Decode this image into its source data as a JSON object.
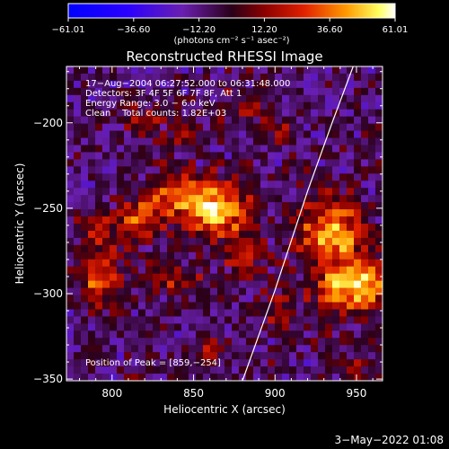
{
  "chart_data": {
    "type": "heatmap",
    "title": "Reconstructed RHESSI Image",
    "xlabel": "Heliocentric X (arcsec)",
    "ylabel": "Heliocentric Y (arcsec)",
    "xlim": [
      772,
      966
    ],
    "ylim": [
      -351,
      -167
    ],
    "x_ticks": [
      800,
      850,
      900,
      950
    ],
    "x_tick_labels": [
      "800",
      "850",
      "900",
      "950"
    ],
    "y_ticks": [
      -200,
      -250,
      -300,
      -350
    ],
    "y_tick_labels": [
      "−200",
      "−250",
      "−300",
      "−350"
    ],
    "colorbar": {
      "min": -61.01,
      "max": 61.01,
      "ticks": [
        -61.01,
        -36.6,
        -12.2,
        12.2,
        36.6,
        61.01
      ],
      "tick_labels": [
        "−61.01",
        "−36.60",
        "−12.20",
        "12.20",
        "36.60",
        "61.01"
      ],
      "unit_label": "(photons cm⁻² s⁻¹ asec⁻²)"
    },
    "annotations": [
      "17−Aug−2004 06:27:52.000 to 06:31:48.000",
      "Detectors: 3F 4F 5F 6F 7F 8F, Att 1",
      "Energy Range: 3.0 − 6.0 keV",
      "Clean    Total counts: 1.82E+03"
    ],
    "peak_label": "Position of Peak = [859,−254]",
    "peak_position": [
      859,
      -254
    ],
    "limb_line": [
      [
        880,
        -351
      ],
      [
        900,
        -298
      ],
      [
        920,
        -240
      ],
      [
        935,
        -200
      ],
      [
        948,
        -167
      ]
    ],
    "sources": [
      {
        "x": 865,
        "y": -250,
        "sx": 13,
        "sy": 11,
        "amp": 61
      },
      {
        "x": 838,
        "y": -243,
        "sx": 12,
        "sy": 9,
        "amp": 42
      },
      {
        "x": 815,
        "y": -258,
        "sx": 10,
        "sy": 9,
        "amp": 33
      },
      {
        "x": 792,
        "y": -292,
        "sx": 9,
        "sy": 12,
        "amp": 40
      },
      {
        "x": 790,
        "y": -262,
        "sx": 7,
        "sy": 8,
        "amp": 22
      },
      {
        "x": 838,
        "y": -292,
        "sx": 11,
        "sy": 6,
        "amp": 28
      },
      {
        "x": 880,
        "y": -278,
        "sx": 8,
        "sy": 8,
        "amp": 26
      },
      {
        "x": 935,
        "y": -264,
        "sx": 14,
        "sy": 14,
        "amp": 52
      },
      {
        "x": 955,
        "y": -295,
        "sx": 10,
        "sy": 11,
        "amp": 56
      },
      {
        "x": 935,
        "y": -296,
        "sx": 10,
        "sy": 9,
        "amp": 35
      },
      {
        "x": 905,
        "y": -310,
        "sx": 7,
        "sy": 10,
        "amp": 22
      },
      {
        "x": 820,
        "y": -200,
        "sx": 7,
        "sy": 6,
        "amp": 24
      },
      {
        "x": 845,
        "y": -205,
        "sx": 8,
        "sy": 6,
        "amp": 18
      },
      {
        "x": 880,
        "y": -190,
        "sx": 10,
        "sy": 10,
        "amp": 12
      },
      {
        "x": 860,
        "y": -335,
        "sx": 7,
        "sy": 6,
        "amp": 16
      },
      {
        "x": 950,
        "y": -345,
        "sx": 8,
        "sy": 5,
        "amp": 18
      },
      {
        "x": 905,
        "y": -205,
        "sx": 6,
        "sy": 6,
        "amp": 20
      }
    ],
    "background_level": -8,
    "grid": false
  },
  "footer": {
    "date": "3−May−2022 01:08"
  }
}
